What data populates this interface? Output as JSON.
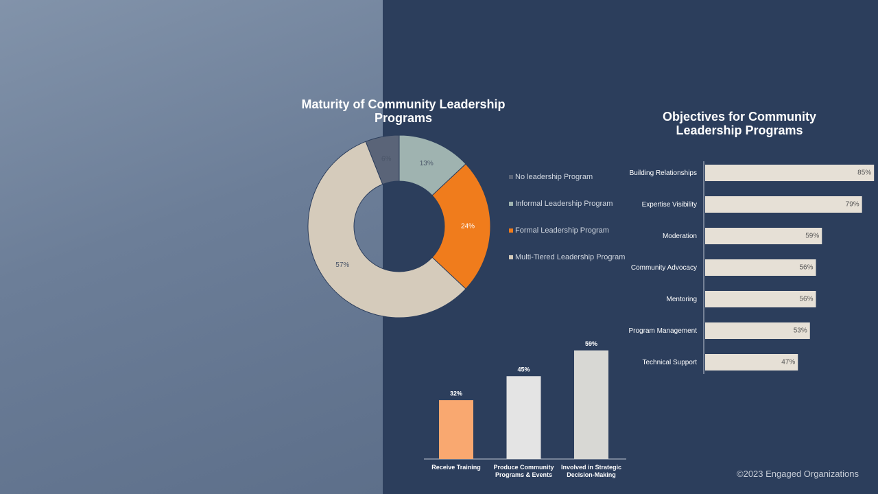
{
  "chart_data": [
    {
      "type": "donut",
      "title": "Maturity of Community Leadership Programs",
      "categories": [
        "No leadership Program",
        "Informal Leadership Program",
        "Formal Leadership Program",
        "Multi-Tiered Leadership Program"
      ],
      "values": [
        6,
        13,
        24,
        57
      ],
      "value_labels": [
        "6%",
        "13%",
        "24%",
        "57%"
      ],
      "colors": [
        "#5a6478",
        "#9fb3b0",
        "#f07c1c",
        "#d5cbbb"
      ]
    },
    {
      "type": "bar",
      "orientation": "horizontal",
      "title": "Objectives for Community Leadership Programs",
      "categories": [
        "Building Relationships",
        "Expertise Visibility",
        "Moderation",
        "Community Advocacy",
        "Mentoring",
        "Program Management",
        "Technical Support"
      ],
      "values": [
        85,
        79,
        59,
        56,
        56,
        53,
        47
      ],
      "value_labels": [
        "85%",
        "79%",
        "59%",
        "56%",
        "56%",
        "53%",
        "47%"
      ],
      "color": "#e6e0d6",
      "xlim": [
        0,
        100
      ]
    },
    {
      "type": "bar",
      "orientation": "vertical",
      "categories": [
        "Receive Training",
        "Produce Community Programs & Events",
        "Involved in Strategic Decision-Making"
      ],
      "values": [
        32,
        45,
        59
      ],
      "value_labels": [
        "32%",
        "45%",
        "59%"
      ],
      "colors": [
        "#f9a870",
        "#e4e4e4",
        "#d8d8d4"
      ],
      "ylim": [
        0,
        60
      ]
    }
  ],
  "footer": "©2023 Engaged Organizations"
}
